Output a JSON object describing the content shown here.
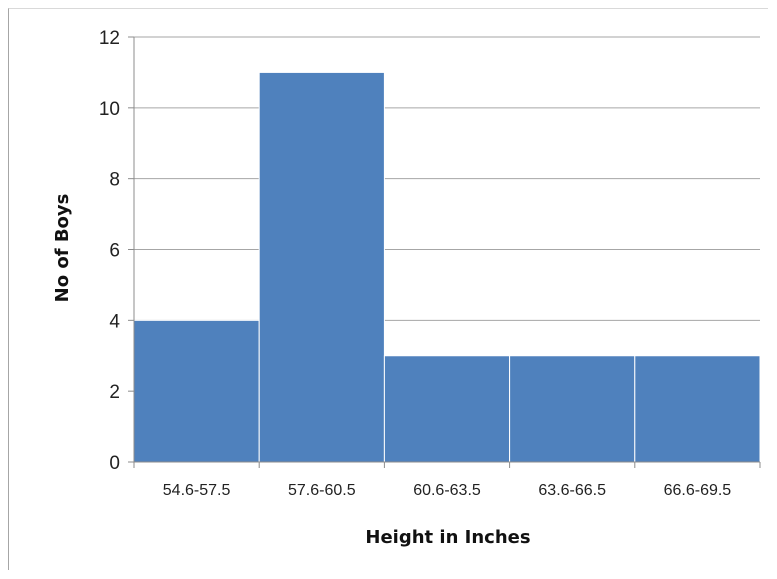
{
  "chart_data": {
    "type": "bar",
    "categories": [
      "54.6-57.5",
      "57.6-60.5",
      "60.6-63.5",
      "63.6-66.5",
      "66.6-69.5"
    ],
    "values": [
      4,
      11,
      3,
      3,
      3
    ],
    "title": "",
    "xlabel": "Height in Inches",
    "ylabel": "No of Boys",
    "ylim": [
      0,
      12
    ],
    "yticks": [
      0,
      2,
      4,
      6,
      8,
      10,
      12
    ],
    "grid": true,
    "bar_color": "#4f81bd",
    "legend": "none"
  }
}
